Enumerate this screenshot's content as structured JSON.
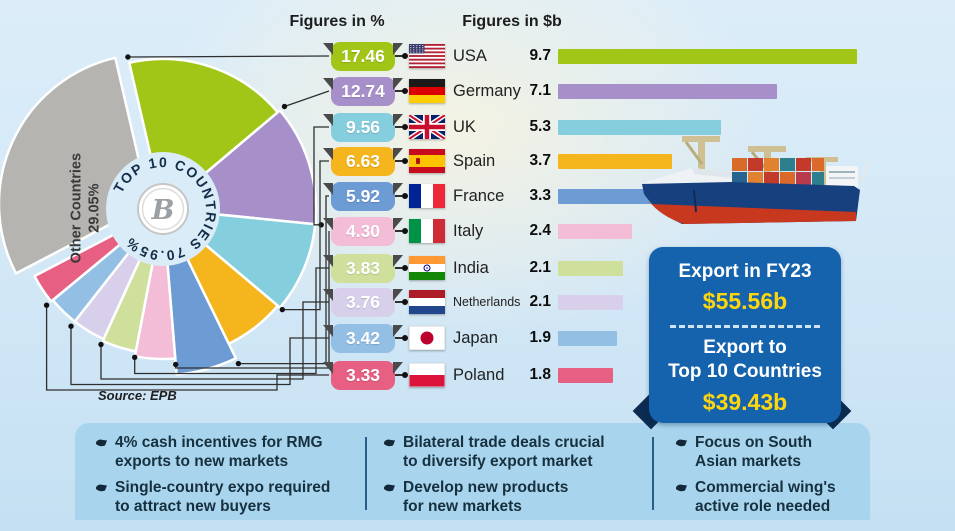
{
  "header": {
    "col_percent": "Figures in %",
    "col_dollar": "Figures in $b"
  },
  "chart_data": {
    "type": "pie+bar",
    "unit_percent": "%",
    "unit_value": "$b",
    "countries": [
      {
        "name": "USA",
        "percent": 17.46,
        "percent_label": "17.46",
        "value": 9.7,
        "value_label": "9.7",
        "color": "#a2c617",
        "flag": "usa"
      },
      {
        "name": "Germany",
        "percent": 12.74,
        "percent_label": "12.74",
        "value": 7.1,
        "value_label": "7.1",
        "color": "#a78fc9",
        "flag": "germany"
      },
      {
        "name": "UK",
        "percent": 9.56,
        "percent_label": "9.56",
        "value": 5.3,
        "value_label": "5.3",
        "color": "#85cedd",
        "flag": "uk"
      },
      {
        "name": "Spain",
        "percent": 6.63,
        "percent_label": "6.63",
        "value": 3.7,
        "value_label": "3.7",
        "color": "#f5b51c",
        "flag": "spain"
      },
      {
        "name": "France",
        "percent": 5.92,
        "percent_label": "5.92",
        "value": 3.3,
        "value_label": "3.3",
        "color": "#6d9bd3",
        "flag": "france"
      },
      {
        "name": "Italy",
        "percent": 4.3,
        "percent_label": "4.30",
        "value": 2.4,
        "value_label": "2.4",
        "color": "#f3bcd7",
        "flag": "italy"
      },
      {
        "name": "India",
        "percent": 3.83,
        "percent_label": "3.83",
        "value": 2.1,
        "value_label": "2.1",
        "color": "#cfe09c",
        "flag": "india"
      },
      {
        "name": "Netherlands",
        "percent": 3.76,
        "percent_label": "3.76",
        "value": 2.1,
        "value_label": "2.1",
        "color": "#d8cfeb",
        "flag": "netherlands"
      },
      {
        "name": "Japan",
        "percent": 3.42,
        "percent_label": "3.42",
        "value": 1.9,
        "value_label": "1.9",
        "color": "#93bfe5",
        "flag": "japan"
      },
      {
        "name": "Poland",
        "percent": 3.33,
        "percent_label": "3.33",
        "value": 1.8,
        "value_label": "1.8",
        "color": "#e75f83",
        "flag": "poland"
      }
    ],
    "other": {
      "label_line1": "Other Countries",
      "label_line2": "29.05%",
      "percent": 29.05,
      "color": "#b5b4b1"
    },
    "center_ring_text": "TOP 10 COUNTRIES 70.95%",
    "logo_letter": "B"
  },
  "source": "Source: EPB",
  "export_box": {
    "title1": "Export in FY23",
    "value1": "$55.56b",
    "title2": "Export to\nTop 10 Countries",
    "value2": "$39.43b"
  },
  "notes": {
    "cols": [
      {
        "items": [
          "4% cash incentives for RMG\nexports to new markets",
          "Single-country expo required\nto attract new buyers"
        ]
      },
      {
        "items": [
          "Bilateral trade deals crucial\nto diversify export market",
          "Develop new products\nfor new markets"
        ]
      },
      {
        "items": [
          "Focus on South\nAsian markets",
          "Commercial wing's\nactive role needed"
        ]
      }
    ]
  }
}
